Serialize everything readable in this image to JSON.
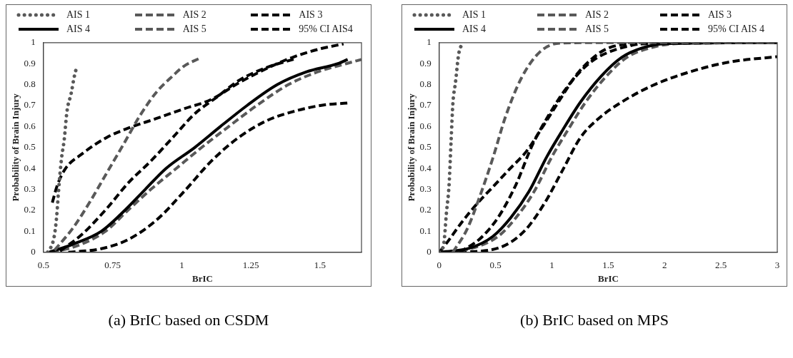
{
  "chart_data": [
    {
      "type": "line",
      "xlabel": "BrIC",
      "ylabel": "Probability of Brain Injury",
      "annotations": [
        "(a) BrIC based on CSDM"
      ],
      "xlim": [
        0.5,
        1.65
      ],
      "xticks": [
        0.5,
        0.75,
        1,
        1.25,
        1.5
      ],
      "ylim": [
        0,
        1
      ],
      "yticks": [
        0,
        0.1,
        0.2,
        0.3,
        0.4,
        0.5,
        0.6,
        0.7,
        0.8,
        0.9,
        1
      ],
      "grid": false,
      "legend": "top",
      "series": [
        {
          "name": "AIS 1",
          "color": "#595959",
          "line_style": "dotted",
          "x": [
            0.515,
            0.532,
            0.54,
            0.548,
            0.555,
            0.565,
            0.575,
            0.585,
            0.6,
            0.612,
            0.621
          ],
          "values": [
            0,
            0.04,
            0.085,
            0.175,
            0.3,
            0.445,
            0.537,
            0.672,
            0.757,
            0.842,
            0.887
          ]
        },
        {
          "name": "AIS 2",
          "color": "#595959",
          "line_style": "dashed",
          "x": [
            0.54,
            0.609,
            0.669,
            0.729,
            0.789,
            0.848,
            0.908,
            0.968,
            1.007,
            1.067
          ],
          "values": [
            0.01,
            0.12,
            0.243,
            0.379,
            0.514,
            0.65,
            0.763,
            0.842,
            0.887,
            0.927
          ]
        },
        {
          "name": "AIS 3",
          "color": "#000000",
          "line_style": "dashed",
          "x": [
            0.56,
            0.639,
            0.729,
            0.808,
            0.888,
            0.968,
            1.047,
            1.127,
            1.206,
            1.306,
            1.405
          ],
          "values": [
            0.006,
            0.085,
            0.209,
            0.333,
            0.435,
            0.548,
            0.661,
            0.74,
            0.819,
            0.881,
            0.921
          ]
        },
        {
          "name": "AIS 4",
          "color": "#000000",
          "line_style": "solid",
          "x": [
            0.52,
            0.609,
            0.709,
            0.794,
            0.868,
            0.943,
            1.047,
            1.14,
            1.236,
            1.346,
            1.45,
            1.565,
            1.6
          ],
          "values": [
            0,
            0.04,
            0.1,
            0.2,
            0.3,
            0.4,
            0.5,
            0.6,
            0.7,
            0.8,
            0.86,
            0.9,
            0.92
          ]
        },
        {
          "name": "AIS 5",
          "color": "#595959",
          "line_style": "dashed",
          "x": [
            0.53,
            0.62,
            0.724,
            0.805,
            0.888,
            0.98,
            1.072,
            1.17,
            1.271,
            1.386,
            1.49,
            1.595,
            1.65
          ],
          "values": [
            0,
            0.03,
            0.1,
            0.2,
            0.3,
            0.4,
            0.5,
            0.6,
            0.7,
            0.8,
            0.86,
            0.9,
            0.92
          ]
        },
        {
          "name": "95% CI AIS4",
          "color": "#000000",
          "line_style": "dashed",
          "x": [
            0.532,
            0.55,
            0.58,
            0.639,
            0.729,
            0.808,
            0.908,
            1.007,
            1.107,
            1.206,
            1.306,
            1.405,
            1.505,
            1.585
          ],
          "values": [
            0.237,
            0.32,
            0.4,
            0.469,
            0.548,
            0.593,
            0.638,
            0.684,
            0.729,
            0.808,
            0.876,
            0.932,
            0.972,
            0.994
          ]
        },
        {
          "color": "#000000",
          "line_style": "dashed",
          "x": [
            0.59,
            0.709,
            0.808,
            0.908,
            1.007,
            1.107,
            1.206,
            1.306,
            1.405,
            1.505,
            1.6
          ],
          "values": [
            0,
            0.017,
            0.062,
            0.153,
            0.288,
            0.435,
            0.548,
            0.627,
            0.672,
            0.701,
            0.712
          ]
        }
      ]
    },
    {
      "type": "line",
      "xlabel": "BrIC",
      "ylabel": "Probability of Brain Injury",
      "annotations": [
        "(b) BrIC based on MPS"
      ],
      "xlim": [
        0,
        3
      ],
      "xticks": [
        0,
        0.5,
        1,
        1.5,
        2,
        2.5,
        3
      ],
      "ylim": [
        0,
        1
      ],
      "yticks": [
        0,
        0.1,
        0.2,
        0.3,
        0.4,
        0.5,
        0.6,
        0.7,
        0.8,
        0.9,
        1
      ],
      "grid": false,
      "legend": "top",
      "series": [
        {
          "name": "AIS 1",
          "color": "#595959",
          "line_style": "dotted",
          "x": [
            0,
            0.04,
            0.064,
            0.087,
            0.105,
            0.121,
            0.144,
            0.174,
            0.213
          ],
          "values": [
            0,
            0.04,
            0.19,
            0.32,
            0.53,
            0.71,
            0.81,
            0.95,
            1
          ]
        },
        {
          "name": "AIS 2",
          "color": "#595959",
          "line_style": "dashed",
          "x": [
            0.12,
            0.247,
            0.362,
            0.476,
            0.59,
            0.728,
            0.888,
            1.071,
            1.437,
            3
          ],
          "values": [
            0,
            0.11,
            0.27,
            0.45,
            0.65,
            0.83,
            0.953,
            0.998,
            1,
            1
          ]
        },
        {
          "name": "AIS 3",
          "color": "#000000",
          "line_style": "dashed",
          "x": [
            0.18,
            0.362,
            0.522,
            0.682,
            0.819,
            0.979,
            1.162,
            1.346,
            1.551,
            1.895,
            3
          ],
          "values": [
            0,
            0.065,
            0.166,
            0.324,
            0.503,
            0.661,
            0.807,
            0.908,
            0.964,
            0.998,
            1
          ]
        },
        {
          "name": "AIS 4",
          "color": "#000000",
          "line_style": "solid",
          "x": [
            0,
            0.27,
            0.476,
            0.636,
            0.796,
            0.957,
            1.094,
            1.254,
            1.437,
            1.62,
            1.803,
            2.009,
            3
          ],
          "values": [
            0,
            0.02,
            0.076,
            0.166,
            0.29,
            0.458,
            0.582,
            0.717,
            0.84,
            0.93,
            0.975,
            0.995,
            1
          ]
        },
        {
          "name": "AIS 5",
          "color": "#595959",
          "line_style": "dashed",
          "x": [
            0,
            0.293,
            0.522,
            0.682,
            0.842,
            1.002,
            1.14,
            1.3,
            1.483,
            1.666,
            1.895,
            2.124,
            3
          ],
          "values": [
            0,
            0.02,
            0.076,
            0.166,
            0.29,
            0.458,
            0.582,
            0.717,
            0.84,
            0.93,
            0.978,
            0.996,
            1
          ]
        },
        {
          "name": "95% CI AIS 4",
          "color": "#000000",
          "line_style": "dashed",
          "x": [
            0,
            0.064,
            0.201,
            0.339,
            0.476,
            0.613,
            0.773,
            0.911,
            1.071,
            1.208,
            1.346,
            1.483,
            1.666,
            3
          ],
          "values": [
            0,
            0.043,
            0.144,
            0.234,
            0.312,
            0.391,
            0.481,
            0.593,
            0.728,
            0.84,
            0.919,
            0.97,
            0.992,
            1
          ]
        },
        {
          "color": "#000000",
          "line_style": "dashed",
          "x": [
            0.18,
            0.522,
            0.751,
            0.934,
            1.094,
            1.254,
            1.414,
            1.62,
            1.895,
            2.238,
            2.581,
            3
          ],
          "values": [
            0,
            0.02,
            0.099,
            0.234,
            0.391,
            0.548,
            0.638,
            0.717,
            0.796,
            0.863,
            0.908,
            0.933
          ]
        }
      ]
    }
  ]
}
